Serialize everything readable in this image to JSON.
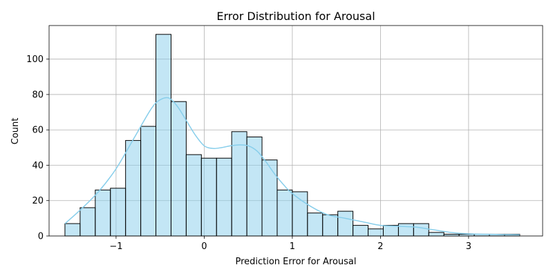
{
  "chart_data": {
    "type": "bar",
    "title": "Error Distribution for Arousal",
    "xlabel": "Prediction Error for Arousal",
    "ylabel": "Count",
    "xlim": [
      -1.76,
      3.84
    ],
    "ylim": [
      0,
      119
    ],
    "xticks": [
      -1,
      0,
      1,
      2,
      3
    ],
    "xtick_labels": [
      "−1",
      "0",
      "1",
      "2",
      "3"
    ],
    "yticks": [
      0,
      20,
      40,
      60,
      80,
      100
    ],
    "ytick_labels": [
      "0",
      "20",
      "40",
      "60",
      "80",
      "100"
    ],
    "grid": true,
    "bin_start": -1.58,
    "bin_width": 0.172,
    "counts": [
      7,
      16,
      26,
      27,
      54,
      62,
      114,
      76,
      46,
      44,
      44,
      59,
      56,
      43,
      26,
      25,
      13,
      12,
      14,
      6,
      4,
      6,
      7,
      7,
      2,
      1,
      1,
      1,
      1,
      1
    ],
    "kde": {
      "x": [
        -1.58,
        -1.4,
        -1.2,
        -1.0,
        -0.8,
        -0.6,
        -0.5,
        -0.4,
        -0.3,
        -0.2,
        -0.1,
        0.0,
        0.1,
        0.2,
        0.3,
        0.4,
        0.5,
        0.6,
        0.7,
        0.8,
        0.9,
        1.0,
        1.2,
        1.4,
        1.6,
        1.8,
        2.0,
        2.2,
        2.4,
        2.6,
        2.8,
        3.0,
        3.2,
        3.4,
        3.58
      ],
      "y": [
        7,
        15,
        25,
        38,
        55,
        72,
        77,
        78,
        73,
        65,
        57,
        51,
        49.5,
        50,
        51,
        51.5,
        51,
        48,
        42,
        35,
        29,
        24,
        17,
        12,
        10,
        8,
        6,
        5.5,
        5,
        3.5,
        2,
        1.2,
        1,
        0.8,
        0.7
      ]
    },
    "bar_color": "#87ceeb",
    "kde_color": "#87ceeb"
  }
}
